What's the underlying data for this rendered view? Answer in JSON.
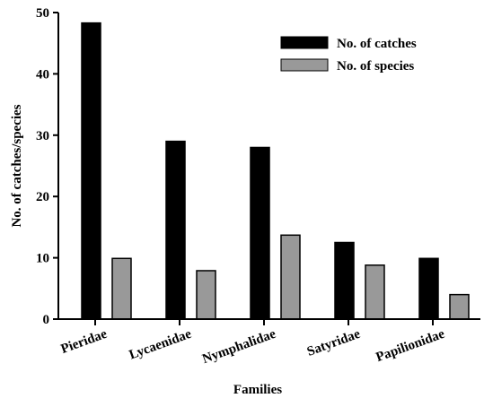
{
  "chart_data": {
    "type": "bar",
    "xlabel": "Families",
    "ylabel": "No. of catches/species",
    "categories": [
      "Pieridae",
      "Lycaenidae",
      "Nymphalidae",
      "Satyridae",
      "Papilionidae"
    ],
    "series": [
      {
        "name": "No. of catches",
        "values": [
          48.3,
          29,
          28,
          12.5,
          9.9
        ],
        "color": "#000000"
      },
      {
        "name": "No. of species",
        "values": [
          9.9,
          7.9,
          13.7,
          8.8,
          4
        ],
        "color": "#999999"
      }
    ],
    "ylim": [
      0,
      50
    ],
    "yticks": [
      0,
      10,
      20,
      30,
      40,
      50
    ],
    "grid": false,
    "legend_position": "top-right"
  }
}
